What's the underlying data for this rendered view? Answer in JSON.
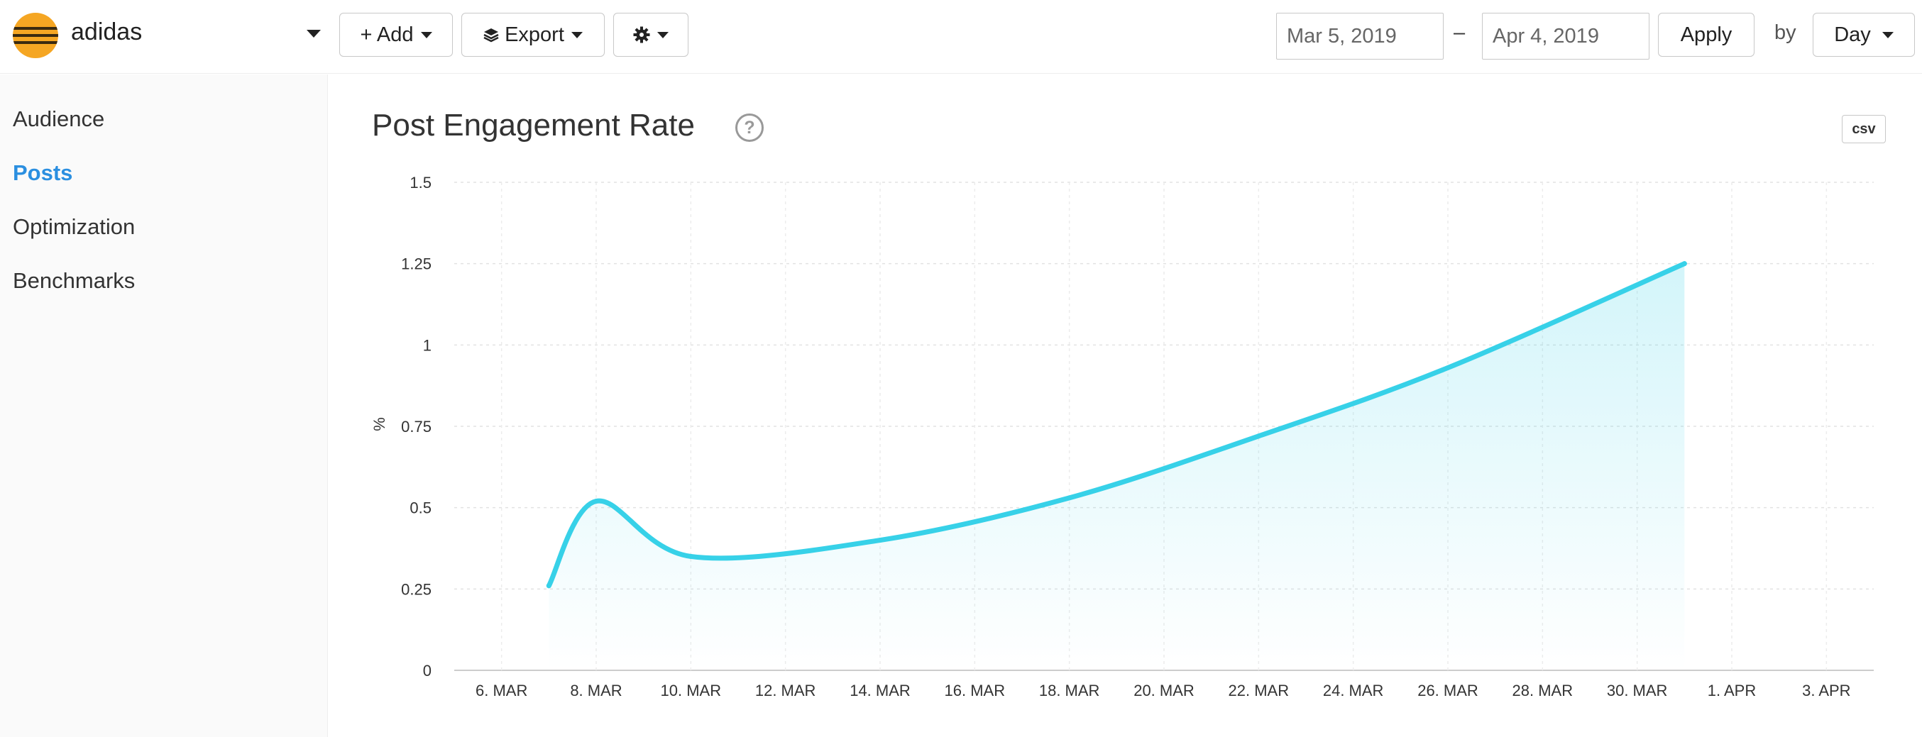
{
  "header": {
    "brand": "adidas",
    "add_label": "+ Add",
    "export_label": "Export",
    "start_date": "Mar 5, 2019",
    "end_date": "Apr 4, 2019",
    "dash": "–",
    "apply_label": "Apply",
    "by_label": "by",
    "granularity": "Day"
  },
  "sidebar": {
    "items": [
      {
        "label": "Audience",
        "active": false
      },
      {
        "label": "Posts",
        "active": true
      },
      {
        "label": "Optimization",
        "active": false
      },
      {
        "label": "Benchmarks",
        "active": false
      }
    ]
  },
  "main": {
    "title": "Post Engagement Rate",
    "help_glyph": "?",
    "csv_label": "csv"
  },
  "colors": {
    "accent": "#2b8fe0",
    "brand_logo": "#f5a623",
    "series": "#37d1e8"
  },
  "icons": [
    "chevron-down-icon",
    "layers-icon",
    "gear-icon",
    "help-icon"
  ],
  "chart_data": {
    "type": "area",
    "title": "Post Engagement Rate",
    "xlabel": "",
    "ylabel": "%",
    "ylim": [
      0,
      1.5
    ],
    "yticks": [
      "0",
      "0.25",
      "0.5",
      "0.75",
      "1",
      "1.25",
      "1.5"
    ],
    "ytick_values": [
      0,
      0.25,
      0.5,
      0.75,
      1,
      1.25,
      1.5
    ],
    "xlim": [
      "2019-03-05",
      "2019-04-04"
    ],
    "xticks": [
      {
        "date": "2019-03-06",
        "label": "6. MAR"
      },
      {
        "date": "2019-03-08",
        "label": "8. MAR"
      },
      {
        "date": "2019-03-10",
        "label": "10. MAR"
      },
      {
        "date": "2019-03-12",
        "label": "12. MAR"
      },
      {
        "date": "2019-03-14",
        "label": "14. MAR"
      },
      {
        "date": "2019-03-16",
        "label": "16. MAR"
      },
      {
        "date": "2019-03-18",
        "label": "18. MAR"
      },
      {
        "date": "2019-03-20",
        "label": "20. MAR"
      },
      {
        "date": "2019-03-22",
        "label": "22. MAR"
      },
      {
        "date": "2019-03-24",
        "label": "24. MAR"
      },
      {
        "date": "2019-03-26",
        "label": "26. MAR"
      },
      {
        "date": "2019-03-28",
        "label": "28. MAR"
      },
      {
        "date": "2019-03-30",
        "label": "30. MAR"
      },
      {
        "date": "2019-04-01",
        "label": "1. APR"
      },
      {
        "date": "2019-04-03",
        "label": "3. APR"
      }
    ],
    "grid": true,
    "series": [
      {
        "points": [
          {
            "x": "2019-03-07",
            "y": 0.26
          },
          {
            "x": "2019-03-08",
            "y": 0.52
          },
          {
            "x": "2019-03-10",
            "y": 0.35
          },
          {
            "x": "2019-03-14",
            "y": 0.4
          },
          {
            "x": "2019-03-18",
            "y": 0.53
          },
          {
            "x": "2019-03-22",
            "y": 0.72
          },
          {
            "x": "2019-03-26",
            "y": 0.93
          },
          {
            "x": "2019-03-31",
            "y": 1.25
          }
        ]
      }
    ]
  }
}
